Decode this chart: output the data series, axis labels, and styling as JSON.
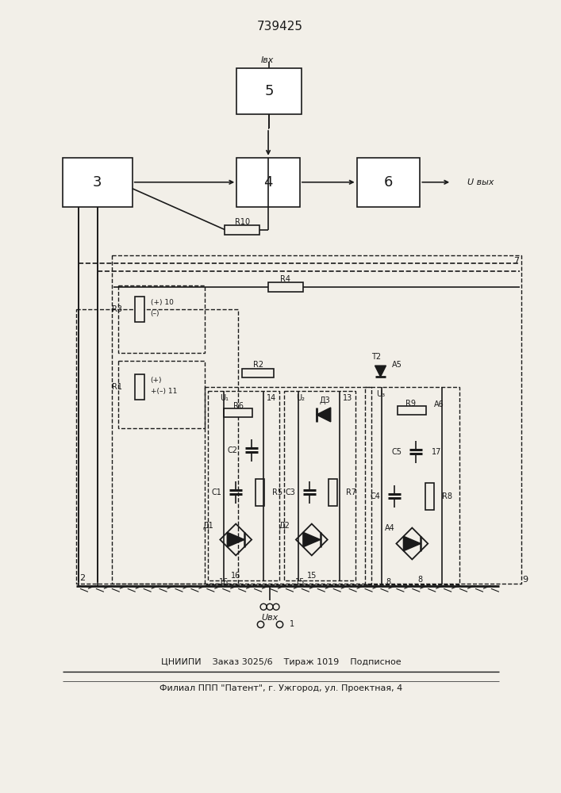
{
  "title": "739425",
  "footer_line1": "ЦНИИПИ    Заказ 3025/6    Тираж 1019    Подписное",
  "footer_line2": "Филиал ППП \"Патент\", г. Ужгород, ул. Проектная, 4",
  "bg_color": "#f2efe8",
  "line_color": "#1a1a1a"
}
